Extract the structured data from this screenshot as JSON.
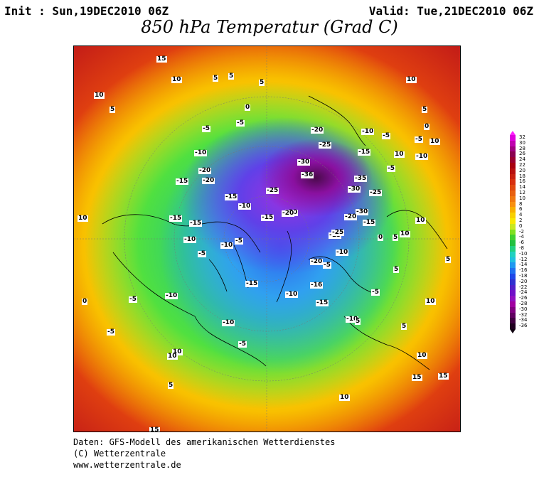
{
  "header": {
    "init": "Init : Sun,19DEC2010 06Z",
    "valid": "Valid: Tue,21DEC2010 06Z",
    "title": "850 hPa Temperatur (Grad C)"
  },
  "map": {
    "contour_labels": [
      {
        "text": "15"
      },
      {
        "text": "10"
      },
      {
        "text": "5"
      },
      {
        "text": "5"
      },
      {
        "text": "5"
      },
      {
        "text": "10"
      },
      {
        "text": "10"
      },
      {
        "text": "10"
      },
      {
        "text": "5"
      },
      {
        "text": "0"
      },
      {
        "text": "10"
      },
      {
        "text": "-5"
      },
      {
        "text": "-20"
      },
      {
        "text": "-25"
      },
      {
        "text": "-15"
      },
      {
        "text": "-10"
      },
      {
        "text": "-5"
      },
      {
        "text": "-30"
      },
      {
        "text": "-36"
      },
      {
        "text": "-35"
      },
      {
        "text": "-30"
      },
      {
        "text": "-25"
      },
      {
        "text": "-20"
      },
      {
        "text": "-15"
      },
      {
        "text": "-10"
      },
      {
        "text": "-5"
      },
      {
        "text": "-25"
      },
      {
        "text": "-20"
      },
      {
        "text": "-15"
      },
      {
        "text": "-10"
      },
      {
        "text": "-20"
      },
      {
        "text": "-15"
      },
      {
        "text": "-10"
      },
      {
        "text": "-5"
      },
      {
        "text": "-15"
      },
      {
        "text": "-10"
      },
      {
        "text": "-5"
      },
      {
        "text": "-15"
      },
      {
        "text": "-20"
      },
      {
        "text": "-15"
      },
      {
        "text": "-10"
      },
      {
        "text": "-5"
      },
      {
        "text": "5"
      },
      {
        "text": "10"
      },
      {
        "text": "10"
      },
      {
        "text": "5"
      },
      {
        "text": "5"
      },
      {
        "text": "10"
      },
      {
        "text": "15"
      },
      {
        "text": "-10"
      },
      {
        "text": "-5"
      },
      {
        "text": "0"
      },
      {
        "text": "5"
      },
      {
        "text": "10"
      },
      {
        "text": "15"
      },
      {
        "text": "10"
      },
      {
        "text": "-10"
      },
      {
        "text": "-5"
      },
      {
        "text": "-15"
      },
      {
        "text": "-10"
      },
      {
        "text": "-20"
      },
      {
        "text": "-16"
      },
      {
        "text": "-15"
      },
      {
        "text": "-10"
      },
      {
        "text": "-5"
      },
      {
        "text": "0"
      },
      {
        "text": "5"
      },
      {
        "text": "10"
      },
      {
        "text": "-5"
      },
      {
        "text": "10"
      },
      {
        "text": "15"
      },
      {
        "text": "5"
      },
      {
        "text": "-25"
      },
      {
        "text": "-30"
      },
      {
        "text": "-20"
      },
      {
        "text": "-15"
      },
      {
        "text": "-5"
      },
      {
        "text": "10"
      },
      {
        "text": "-10"
      },
      {
        "text": "-5"
      },
      {
        "text": "0"
      },
      {
        "text": "5"
      }
    ]
  },
  "colorbar": {
    "labels": [
      "32",
      "30",
      "28",
      "26",
      "24",
      "22",
      "20",
      "18",
      "16",
      "14",
      "12",
      "10",
      "8",
      "6",
      "4",
      "2",
      "0",
      "-2",
      "-4",
      "-6",
      "-8",
      "-10",
      "-12",
      "-14",
      "-16",
      "-18",
      "-20",
      "-22",
      "-24",
      "-26",
      "-28",
      "-30",
      "-32",
      "-34",
      "-36"
    ],
    "colors": [
      "#e000e0",
      "#c000b0",
      "#a00080",
      "#8a0050",
      "#9a0030",
      "#a80010",
      "#b81010",
      "#c82010",
      "#d83010",
      "#e04810",
      "#e86010",
      "#f07810",
      "#f89010",
      "#f8b000",
      "#f8d000",
      "#f8e800",
      "#c8e820",
      "#80e020",
      "#40d030",
      "#20c040",
      "#20d080",
      "#20d0c0",
      "#20c0e0",
      "#2098f0",
      "#2070f0",
      "#2048e8",
      "#3030d0",
      "#5020c8",
      "#7010c8",
      "#9010c0",
      "#a000a0",
      "#800080",
      "#600060",
      "#400040",
      "#200020"
    ],
    "top_color": "#ff20ff",
    "bottom_color": "#100010"
  },
  "footer": {
    "line1": "Daten: GFS-Modell des amerikanischen Wetterdienstes",
    "line2": "(C) Wetterzentrale",
    "line3": "www.wetterzentrale.de"
  }
}
